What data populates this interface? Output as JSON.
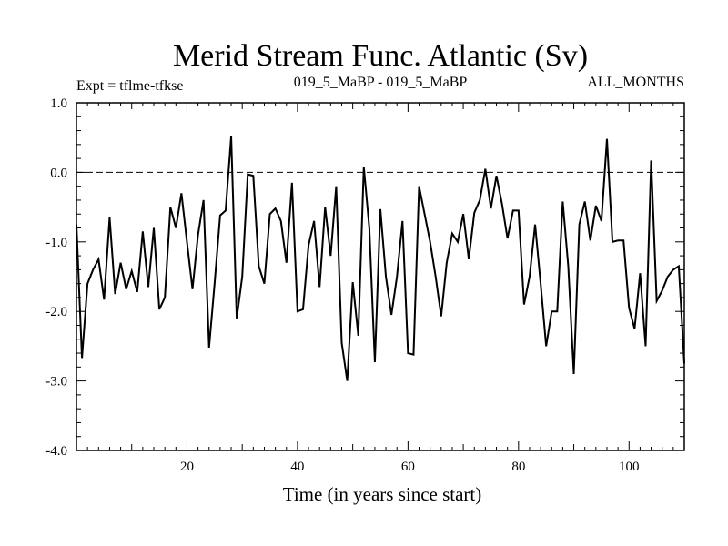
{
  "chart_data": {
    "type": "line",
    "title": "Merid Stream Func. Atlantic (Sv)",
    "subtitle_left": "Expt = tflme-tfkse",
    "subtitle_center": "019_5_MaBP - 019_5_MaBP",
    "subtitle_right": "ALL_MONTHS",
    "xlabel": "Time (in years since start)",
    "ylabel": "",
    "xlim": [
      0,
      110
    ],
    "ylim": [
      -4.0,
      1.0
    ],
    "xticks": [
      20,
      40,
      60,
      80,
      100
    ],
    "xtick_labels": [
      "20",
      "40",
      "60",
      "80",
      "100"
    ],
    "yticks": [
      1.0,
      0.0,
      -1.0,
      -2.0,
      -3.0,
      -4.0
    ],
    "ytick_labels": [
      "1.0",
      "0.0",
      "-1.0",
      "-2.0",
      "-3.0",
      "-4.0"
    ],
    "reference_line": {
      "y": 0.0,
      "style": "dashed"
    },
    "series": [
      {
        "name": "Merid Stream Func. Atlantic",
        "x": [
          0,
          1,
          2,
          3,
          4,
          5,
          6,
          7,
          8,
          9,
          10,
          11,
          12,
          13,
          14,
          15,
          16,
          17,
          18,
          19,
          20,
          21,
          22,
          23,
          24,
          25,
          26,
          27,
          28,
          29,
          30,
          31,
          32,
          33,
          34,
          35,
          36,
          37,
          38,
          39,
          40,
          41,
          42,
          43,
          44,
          45,
          46,
          47,
          48,
          49,
          50,
          51,
          52,
          53,
          54,
          55,
          56,
          57,
          58,
          59,
          60,
          61,
          62,
          63,
          64,
          65,
          66,
          67,
          68,
          69,
          70,
          71,
          72,
          73,
          74,
          75,
          76,
          77,
          78,
          79,
          80,
          81,
          82,
          83,
          84,
          85,
          86,
          87,
          88,
          89,
          90,
          91,
          92,
          93,
          94,
          95,
          96,
          97,
          98,
          99,
          100,
          101,
          102,
          103,
          104,
          105,
          106,
          107,
          108,
          109,
          110
        ],
        "y": [
          -0.75,
          -2.67,
          -1.6,
          -1.4,
          -1.25,
          -1.83,
          -0.65,
          -1.75,
          -1.3,
          -1.68,
          -1.42,
          -1.72,
          -0.85,
          -1.65,
          -0.8,
          -1.97,
          -1.8,
          -0.5,
          -0.8,
          -0.3,
          -1.0,
          -1.68,
          -0.9,
          -0.4,
          -2.52,
          -1.6,
          -0.62,
          -0.55,
          0.52,
          -2.1,
          -1.5,
          -0.03,
          -0.05,
          -1.35,
          -1.6,
          -0.6,
          -0.52,
          -0.7,
          -1.3,
          -0.15,
          -2.0,
          -1.97,
          -1.05,
          -0.7,
          -1.65,
          -0.5,
          -1.2,
          -0.2,
          -2.45,
          -3.0,
          -1.58,
          -2.35,
          0.08,
          -0.8,
          -2.73,
          -0.53,
          -1.5,
          -2.05,
          -1.5,
          -0.7,
          -2.6,
          -2.62,
          -0.2,
          -0.6,
          -1.0,
          -1.5,
          -2.07,
          -1.3,
          -0.88,
          -1.0,
          -0.6,
          -1.25,
          -0.58,
          -0.4,
          0.05,
          -0.52,
          -0.05,
          -0.45,
          -0.95,
          -0.55,
          -0.55,
          -1.9,
          -1.5,
          -0.75,
          -1.6,
          -2.5,
          -2.0,
          -2.0,
          -0.42,
          -1.35,
          -2.9,
          -0.75,
          -0.42,
          -0.98,
          -0.48,
          -0.7,
          0.48,
          -1.0,
          -0.98,
          -0.98,
          -1.95,
          -2.25,
          -1.45,
          -2.5,
          0.17,
          -1.85,
          -1.7,
          -1.5,
          -1.4,
          -1.35,
          -2.75
        ]
      }
    ]
  }
}
